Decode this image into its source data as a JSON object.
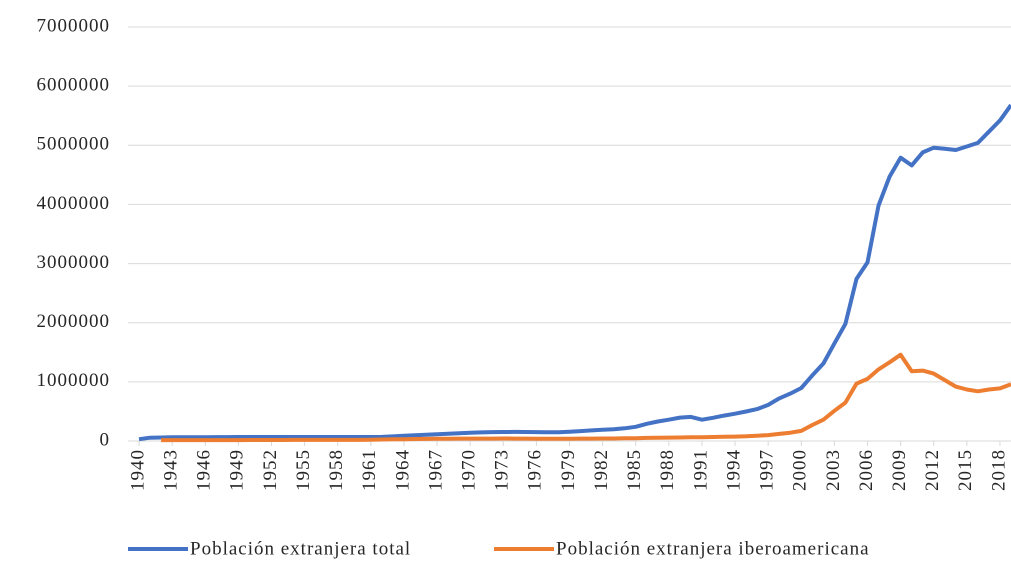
{
  "chart_data": {
    "type": "line",
    "x": [
      1940,
      1941,
      1942,
      1943,
      1944,
      1945,
      1946,
      1947,
      1948,
      1949,
      1950,
      1951,
      1952,
      1953,
      1954,
      1955,
      1956,
      1957,
      1958,
      1959,
      1960,
      1961,
      1962,
      1963,
      1964,
      1965,
      1966,
      1967,
      1968,
      1969,
      1970,
      1971,
      1972,
      1973,
      1974,
      1975,
      1976,
      1977,
      1978,
      1979,
      1980,
      1981,
      1982,
      1983,
      1984,
      1985,
      1986,
      1987,
      1988,
      1989,
      1990,
      1991,
      1992,
      1993,
      1994,
      1995,
      1996,
      1997,
      1998,
      1999,
      2000,
      2001,
      2002,
      2003,
      2004,
      2005,
      2006,
      2007,
      2008,
      2009,
      2010,
      2011,
      2012,
      2013,
      2014,
      2015,
      2016,
      2017,
      2018,
      2019
    ],
    "series": [
      {
        "name": "Población extranjera total",
        "color": "#4472c4",
        "values": [
          30000,
          55000,
          60000,
          62000,
          63000,
          64000,
          65000,
          66000,
          66000,
          67000,
          67000,
          67000,
          67000,
          68000,
          68000,
          68000,
          68000,
          67000,
          67000,
          67000,
          67000,
          68000,
          70000,
          78000,
          88000,
          97000,
          106000,
          115000,
          124000,
          132000,
          140000,
          146000,
          150000,
          153000,
          154000,
          152000,
          150000,
          148000,
          147000,
          155000,
          168000,
          180000,
          190000,
          200000,
          215000,
          240000,
          290000,
          330000,
          360000,
          395000,
          407000,
          360000,
          393000,
          430000,
          461000,
          499000,
          539000,
          610000,
          720000,
          801000,
          896000,
          1110000,
          1310000,
          1650000,
          1980000,
          2740000,
          3020000,
          3980000,
          4470000,
          4790000,
          4660000,
          4880000,
          4960000,
          4940000,
          4920000,
          4980000,
          5040000,
          5230000,
          5420000,
          5680000
        ]
      },
      {
        "name": "Población extranjera iberoamericana",
        "color": "#ed7d31",
        "values": [
          null,
          null,
          15000,
          15000,
          15000,
          15000,
          16000,
          16000,
          16000,
          16000,
          17000,
          17000,
          17000,
          17000,
          18000,
          18000,
          18000,
          18000,
          18000,
          19000,
          19000,
          22000,
          25000,
          28000,
          31000,
          34000,
          36000,
          38000,
          39000,
          40000,
          40000,
          41000,
          41000,
          42000,
          41000,
          40000,
          39000,
          38000,
          38000,
          39000,
          40000,
          41000,
          42000,
          43000,
          45000,
          48000,
          52000,
          55000,
          58000,
          60000,
          62000,
          64000,
          67000,
          71000,
          75000,
          80000,
          90000,
          100000,
          120000,
          140000,
          170000,
          270000,
          360000,
          510000,
          650000,
          970000,
          1050000,
          1210000,
          1330000,
          1460000,
          1180000,
          1190000,
          1140000,
          1030000,
          920000,
          870000,
          840000,
          870000,
          890000,
          960000
        ]
      }
    ],
    "xlim": [
      1939,
      2019
    ],
    "xticks": [
      1940,
      1943,
      1946,
      1949,
      1952,
      1955,
      1958,
      1961,
      1964,
      1967,
      1970,
      1973,
      1976,
      1979,
      1982,
      1985,
      1988,
      1991,
      1994,
      1997,
      2000,
      2003,
      2006,
      2009,
      2012,
      2015,
      2018
    ],
    "ylim": [
      0,
      7000000
    ],
    "yticks": [
      0,
      1000000,
      2000000,
      3000000,
      4000000,
      5000000,
      6000000,
      7000000
    ],
    "grid": true,
    "legend": "bottom"
  }
}
